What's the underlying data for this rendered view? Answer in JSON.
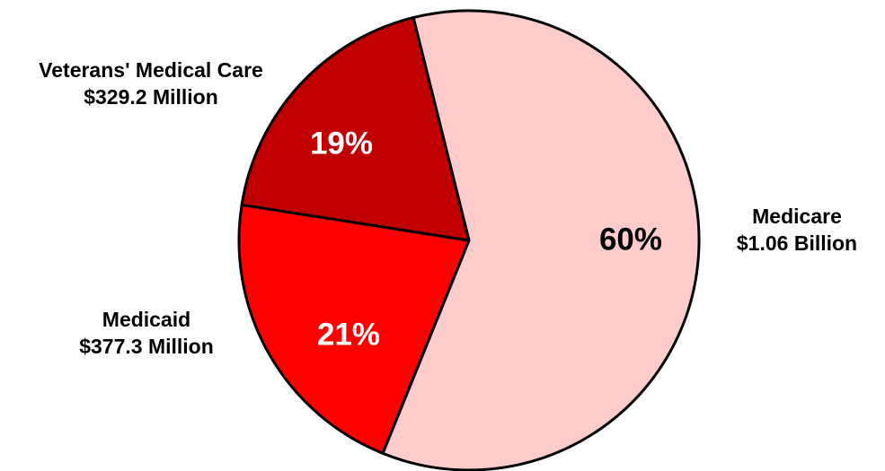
{
  "chart_data": {
    "type": "pie",
    "title": "",
    "slices": [
      {
        "label": "Medicare",
        "amount": "$1.06 Billion",
        "value": 1060,
        "percent_label": "60%",
        "color": "#ffcccc",
        "percent_color": "#000000"
      },
      {
        "label": "Medicaid",
        "amount": "$377.3 Million",
        "value": 377.3,
        "percent_label": "21%",
        "color": "#ff0000",
        "percent_color": "#ffffff"
      },
      {
        "label": "Veterans' Medical Care",
        "amount": "$329.2 Million",
        "value": 329.2,
        "percent_label": "19%",
        "color": "#c00000",
        "percent_color": "#ffffff"
      }
    ],
    "units": "USD (millions)",
    "start_angle_deg": -14,
    "direction": "clockwise",
    "legend": "none"
  }
}
